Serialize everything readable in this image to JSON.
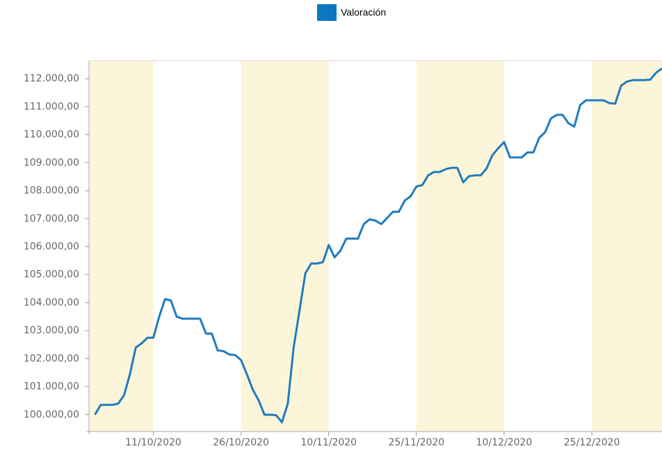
{
  "chart_data": {
    "type": "line",
    "x": [
      "01/10/2020",
      "02/10/2020",
      "03/10/2020",
      "04/10/2020",
      "05/10/2020",
      "06/10/2020",
      "07/10/2020",
      "08/10/2020",
      "09/10/2020",
      "10/10/2020",
      "11/10/2020",
      "12/10/2020",
      "13/10/2020",
      "14/10/2020",
      "15/10/2020",
      "16/10/2020",
      "17/10/2020",
      "18/10/2020",
      "19/10/2020",
      "20/10/2020",
      "21/10/2020",
      "22/10/2020",
      "23/10/2020",
      "24/10/2020",
      "25/10/2020",
      "26/10/2020",
      "27/10/2020",
      "28/10/2020",
      "29/10/2020",
      "30/10/2020",
      "31/10/2020",
      "01/11/2020",
      "02/11/2020",
      "03/11/2020",
      "04/11/2020",
      "05/11/2020",
      "06/11/2020",
      "07/11/2020",
      "08/11/2020",
      "09/11/2020",
      "10/11/2020",
      "11/11/2020",
      "12/11/2020",
      "13/11/2020",
      "14/11/2020",
      "15/11/2020",
      "16/11/2020",
      "17/11/2020",
      "18/11/2020",
      "19/11/2020",
      "20/11/2020",
      "21/11/2020",
      "22/11/2020",
      "23/11/2020",
      "24/11/2020",
      "25/11/2020",
      "26/11/2020",
      "27/11/2020",
      "28/11/2020",
      "29/11/2020",
      "30/11/2020",
      "01/12/2020",
      "02/12/2020",
      "03/12/2020",
      "04/12/2020",
      "05/12/2020",
      "06/12/2020",
      "07/12/2020",
      "08/12/2020",
      "09/12/2020",
      "10/12/2020",
      "11/12/2020",
      "12/12/2020",
      "13/12/2020",
      "14/12/2020",
      "15/12/2020",
      "16/12/2020",
      "17/12/2020",
      "18/12/2020",
      "19/12/2020",
      "20/12/2020",
      "21/12/2020",
      "22/12/2020",
      "23/12/2020",
      "24/12/2020",
      "25/12/2020",
      "26/12/2020",
      "27/12/2020",
      "28/12/2020",
      "29/12/2020",
      "30/12/2020",
      "31/12/2020",
      "01/01/2021",
      "02/01/2021",
      "03/01/2021",
      "04/01/2021",
      "05/01/2021",
      "06/01/2021"
    ],
    "series": [
      {
        "name": "Valoración",
        "color": "#1f7bbd",
        "values": [
          100000,
          100350,
          100350,
          100350,
          100400,
          100700,
          101450,
          102400,
          102550,
          102750,
          102750,
          103500,
          104130,
          104080,
          103500,
          103430,
          103430,
          103430,
          103430,
          102900,
          102900,
          102300,
          102270,
          102150,
          102130,
          101950,
          101450,
          100900,
          100520,
          100000,
          100000,
          99980,
          99730,
          100400,
          102400,
          103720,
          105050,
          105400,
          105400,
          105450,
          106060,
          105620,
          105860,
          106290,
          106290,
          106290,
          106810,
          106980,
          106930,
          106810,
          107030,
          107250,
          107250,
          107650,
          107800,
          108150,
          108200,
          108550,
          108670,
          108670,
          108770,
          108820,
          108820,
          108300,
          108520,
          108550,
          108550,
          108800,
          109270,
          109520,
          109740,
          109190,
          109190,
          109190,
          109370,
          109370,
          109890,
          110090,
          110580,
          110710,
          110710,
          110410,
          110290,
          111060,
          111230,
          111230,
          111230,
          111230,
          111130,
          111110,
          111750,
          111900,
          111950,
          111950,
          111950,
          111970,
          112220,
          112370
        ]
      }
    ],
    "legend_color": "#0a77c0",
    "xlim": [
      "30/09/2020",
      "06/01/2021"
    ],
    "xticks": [
      "11/10/2020",
      "26/10/2020",
      "10/11/2020",
      "25/11/2020",
      "10/12/2020",
      "25/12/2020"
    ],
    "ylim": [
      99400,
      112650
    ],
    "yticks": [
      {
        "value": 100000,
        "label": "100.000,00"
      },
      {
        "value": 101000,
        "label": "101.000,00"
      },
      {
        "value": 102000,
        "label": "102.000,00"
      },
      {
        "value": 103000,
        "label": "103.000,00"
      },
      {
        "value": 104000,
        "label": "104.000,00"
      },
      {
        "value": 105000,
        "label": "105.000,00"
      },
      {
        "value": 106000,
        "label": "106.000,00"
      },
      {
        "value": 107000,
        "label": "107.000,00"
      },
      {
        "value": 108000,
        "label": "108.000,00"
      },
      {
        "value": 109000,
        "label": "109.000,00"
      },
      {
        "value": 110000,
        "label": "110.000,00"
      },
      {
        "value": 111000,
        "label": "111.000,00"
      },
      {
        "value": 112000,
        "label": "112.000,00"
      }
    ],
    "band_color": "#fdf5d9"
  }
}
